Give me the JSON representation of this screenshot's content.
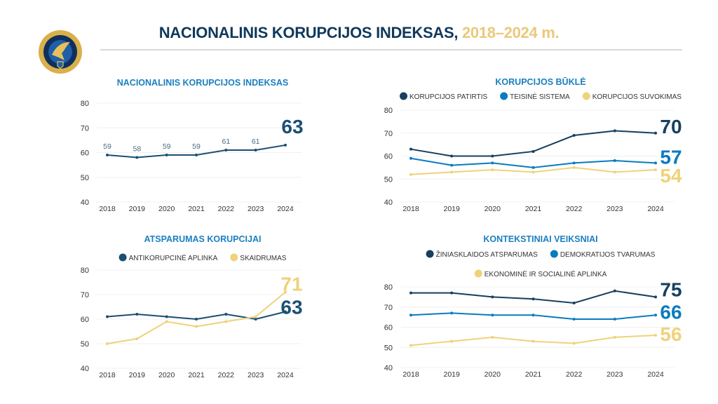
{
  "header": {
    "title_main": "NACIONALINIS KORUPCIJOS INDEKSAS,",
    "title_years": "2018–2024 m.",
    "logo_text": "SPECIALIŲJŲ TYRIMŲ TARNYBA"
  },
  "colors": {
    "navy": "#173f5f",
    "blue": "#0a7bbf",
    "yellow": "#efd27a",
    "subtitle": "#1a7fc1",
    "title": "#10395c"
  },
  "chart_data": [
    {
      "type": "line",
      "title": "NACIONALINIS KORUPCIJOS INDEKSAS",
      "categories": [
        "2018",
        "2019",
        "2020",
        "2021",
        "2022",
        "2023",
        "2024"
      ],
      "yticks": [
        40,
        50,
        60,
        70,
        80
      ],
      "ylim": [
        40,
        80
      ],
      "grid": true,
      "legend": "none",
      "series": [
        {
          "values": [
            59,
            58,
            59,
            59,
            61,
            61,
            63
          ],
          "color": "#1b4f72",
          "point_labels": true,
          "end_label": "63"
        }
      ]
    },
    {
      "type": "line",
      "title": "KORUPCIJOS BŪKLĖ",
      "categories": [
        "2018",
        "2019",
        "2020",
        "2021",
        "2022",
        "2023",
        "2024"
      ],
      "yticks": [
        40,
        50,
        60,
        70,
        80
      ],
      "ylim": [
        40,
        80
      ],
      "grid": true,
      "legend": "top",
      "series": [
        {
          "name": "KORUPCIJOS PATIRTIS",
          "values": [
            63,
            60,
            60,
            62,
            69,
            71,
            70
          ],
          "color": "#173f5f",
          "end_label": "70"
        },
        {
          "name": "TEISINĖ SISTEMA",
          "values": [
            59,
            56,
            57,
            55,
            57,
            58,
            57
          ],
          "color": "#0a7bbf",
          "end_label": "57"
        },
        {
          "name": "KORUPCIJOS SUVOKIMAS",
          "values": [
            52,
            53,
            54,
            53,
            55,
            53,
            54
          ],
          "color": "#efd27a",
          "end_label": "54"
        }
      ]
    },
    {
      "type": "line",
      "title": "ATSPARUMAS KORUPCIJAI",
      "categories": [
        "2018",
        "2019",
        "2020",
        "2021",
        "2022",
        "2023",
        "2024"
      ],
      "yticks": [
        40,
        50,
        60,
        70,
        80
      ],
      "ylim": [
        40,
        80
      ],
      "grid": true,
      "legend": "top",
      "series": [
        {
          "name": "ANTIKORUPCINĖ APLINKA",
          "values": [
            61,
            62,
            61,
            60,
            62,
            60,
            63
          ],
          "color": "#1b4f72",
          "end_label": "63"
        },
        {
          "name": "SKAIDRUMAS",
          "values": [
            50,
            52,
            59,
            57,
            59,
            61,
            71
          ],
          "color": "#efd27a",
          "end_label": "71"
        }
      ]
    },
    {
      "type": "line",
      "title": "KONTEKSTINIAI VEIKSNIAI",
      "categories": [
        "2018",
        "2019",
        "2020",
        "2021",
        "2022",
        "2023",
        "2024"
      ],
      "yticks": [
        40,
        50,
        60,
        70,
        80
      ],
      "ylim": [
        40,
        80
      ],
      "grid": true,
      "legend": "top",
      "series": [
        {
          "name": "ŽINIASKLAIDOS ATSPARUMAS",
          "values": [
            77,
            77,
            75,
            74,
            72,
            78,
            75
          ],
          "color": "#173f5f",
          "end_label": "75"
        },
        {
          "name": "DEMOKRATIJOS TVARUMAS",
          "values": [
            66,
            67,
            66,
            66,
            64,
            64,
            66
          ],
          "color": "#0a7bbf",
          "end_label": "66"
        },
        {
          "name": "EKONOMINĖ IR SOCIALINĖ APLINKA",
          "values": [
            51,
            53,
            55,
            53,
            52,
            55,
            56
          ],
          "color": "#efd27a",
          "end_label": "56"
        }
      ]
    }
  ]
}
